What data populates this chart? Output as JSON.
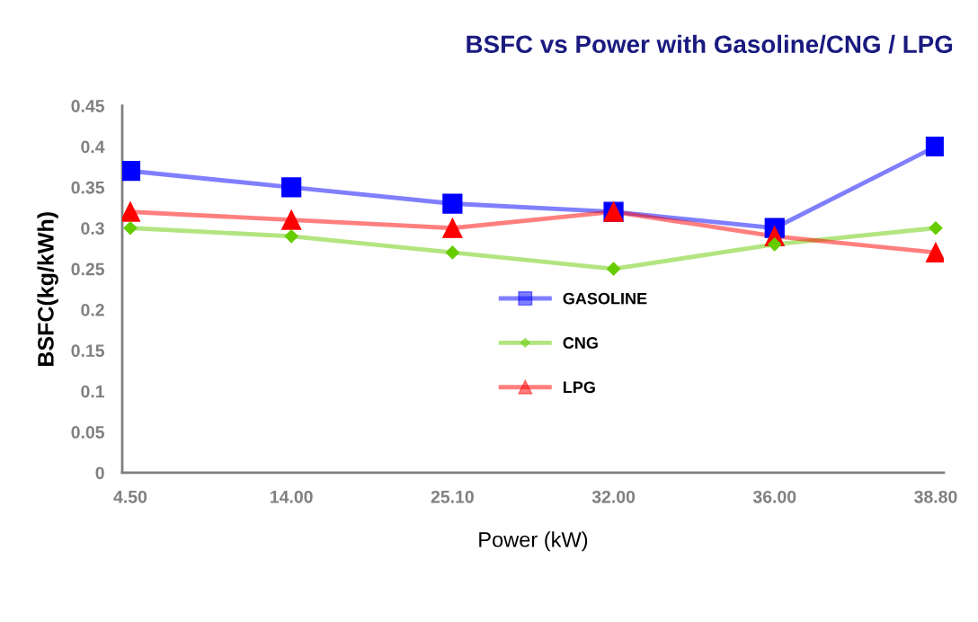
{
  "chart_data": {
    "type": "line",
    "title": "BSFC vs Power with Gasoline/CNG / LPG",
    "xlabel": "Power (kW)",
    "ylabel": "BSFC(kg/kWh)",
    "categories": [
      "4.50",
      "14.00",
      "25.10",
      "32.00",
      "36.00",
      "38.80"
    ],
    "series": [
      {
        "name": "GASOLINE",
        "color": "#0000ff",
        "marker": "square",
        "values": [
          0.37,
          0.35,
          0.33,
          0.32,
          0.3,
          0.4
        ]
      },
      {
        "name": "CNG",
        "color": "#66cc00",
        "marker": "diamond",
        "values": [
          0.3,
          0.29,
          0.27,
          0.25,
          0.28,
          0.3
        ]
      },
      {
        "name": "LPG",
        "color": "#ff0000",
        "marker": "triangle",
        "values": [
          0.32,
          0.31,
          0.3,
          0.32,
          0.29,
          0.27
        ]
      }
    ],
    "ylim": [
      0,
      0.45
    ],
    "yticks": [
      0,
      {
        "value": 0.05,
        "label": "0.05"
      },
      {
        "value": 0.1,
        "label": "0.1"
      },
      {
        "value": 0.15,
        "label": "0.15"
      },
      {
        "value": 0.2,
        "label": "0.2"
      },
      {
        "value": 0.25,
        "label": "0.25"
      },
      {
        "value": 0.3,
        "label": "0.3"
      },
      {
        "value": 0.35,
        "label": "0.35"
      },
      {
        "value": 0.4,
        "label": "0.4"
      },
      {
        "value": 0.45,
        "label": "0.45"
      }
    ],
    "grid": false,
    "legend": "center",
    "line_style": "solid"
  }
}
